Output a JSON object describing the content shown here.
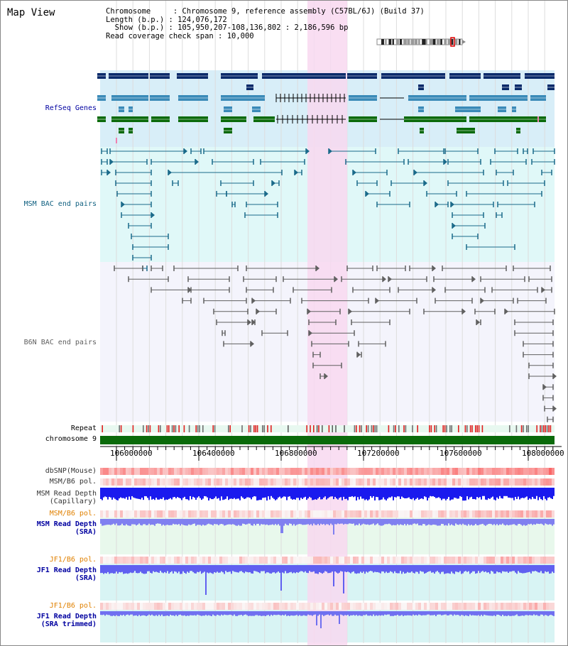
{
  "view_title": "Map View",
  "info": {
    "chromosome_label": "Chromosome     : ",
    "chromosome": "Chromosome 9, reference assembly (C57BL/6J) (Build 37)",
    "length_label": "Length (b.p.) : ",
    "length": "124,076,172",
    "show_label": "Show (b.p.) : ",
    "show": "105,950,207-108,136,802 : 2,186,596 bp",
    "coverage_label": "Read coverage check span : ",
    "coverage": "10,000"
  },
  "tracks": {
    "refseq": "RefSeq Genes",
    "msm_bac": "MSM BAC end pairs",
    "b6n_bac": "B6N BAC end pairs",
    "repeat": "Repeat",
    "chromosome": "chromosome 9",
    "dbsnp": "dbSNP(Mouse)",
    "msm_b6_pol_1": "MSM/B6 pol.",
    "msm_read_depth_cap_1": "MSM Read Depth",
    "msm_read_depth_cap_2": "(Capillary)",
    "msm_b6_pol_2": "MSM/B6 pol.",
    "msm_read_depth_sra_1": "MSM Read Depth",
    "msm_read_depth_sra_2": "(SRA)",
    "jf1_b6_pol_1": "JF1/B6 pol.",
    "jf1_read_depth_sra_1": "JF1 Read Depth",
    "jf1_read_depth_sra_2": "(SRA)",
    "jf1_b6_pol_2": "JF1/B6 pol.",
    "jf1_read_depth_trim_1": "JF1 Read Depth",
    "jf1_read_depth_trim_2": "(SRA trimmed)"
  },
  "axis": {
    "ticks": [
      "106000000",
      "106400000",
      "106800000",
      "107200000",
      "107600000",
      "108000000"
    ]
  },
  "colors": {
    "highlight": "#f8d8f0",
    "refseq_bg": "#d8eef8",
    "bac_bg": "#e0f8f8",
    "b6n_bg": "#f4f4fc",
    "gene_dark": "#0a2a6a",
    "gene_mid": "#3a8ab8",
    "gene_green": "#0a6a0a",
    "msm_pair": "#1a6a8a",
    "b6n_pair": "#606060",
    "label_blue": "#0000a0",
    "label_teal": "#106080",
    "label_orange": "#e08000"
  }
}
